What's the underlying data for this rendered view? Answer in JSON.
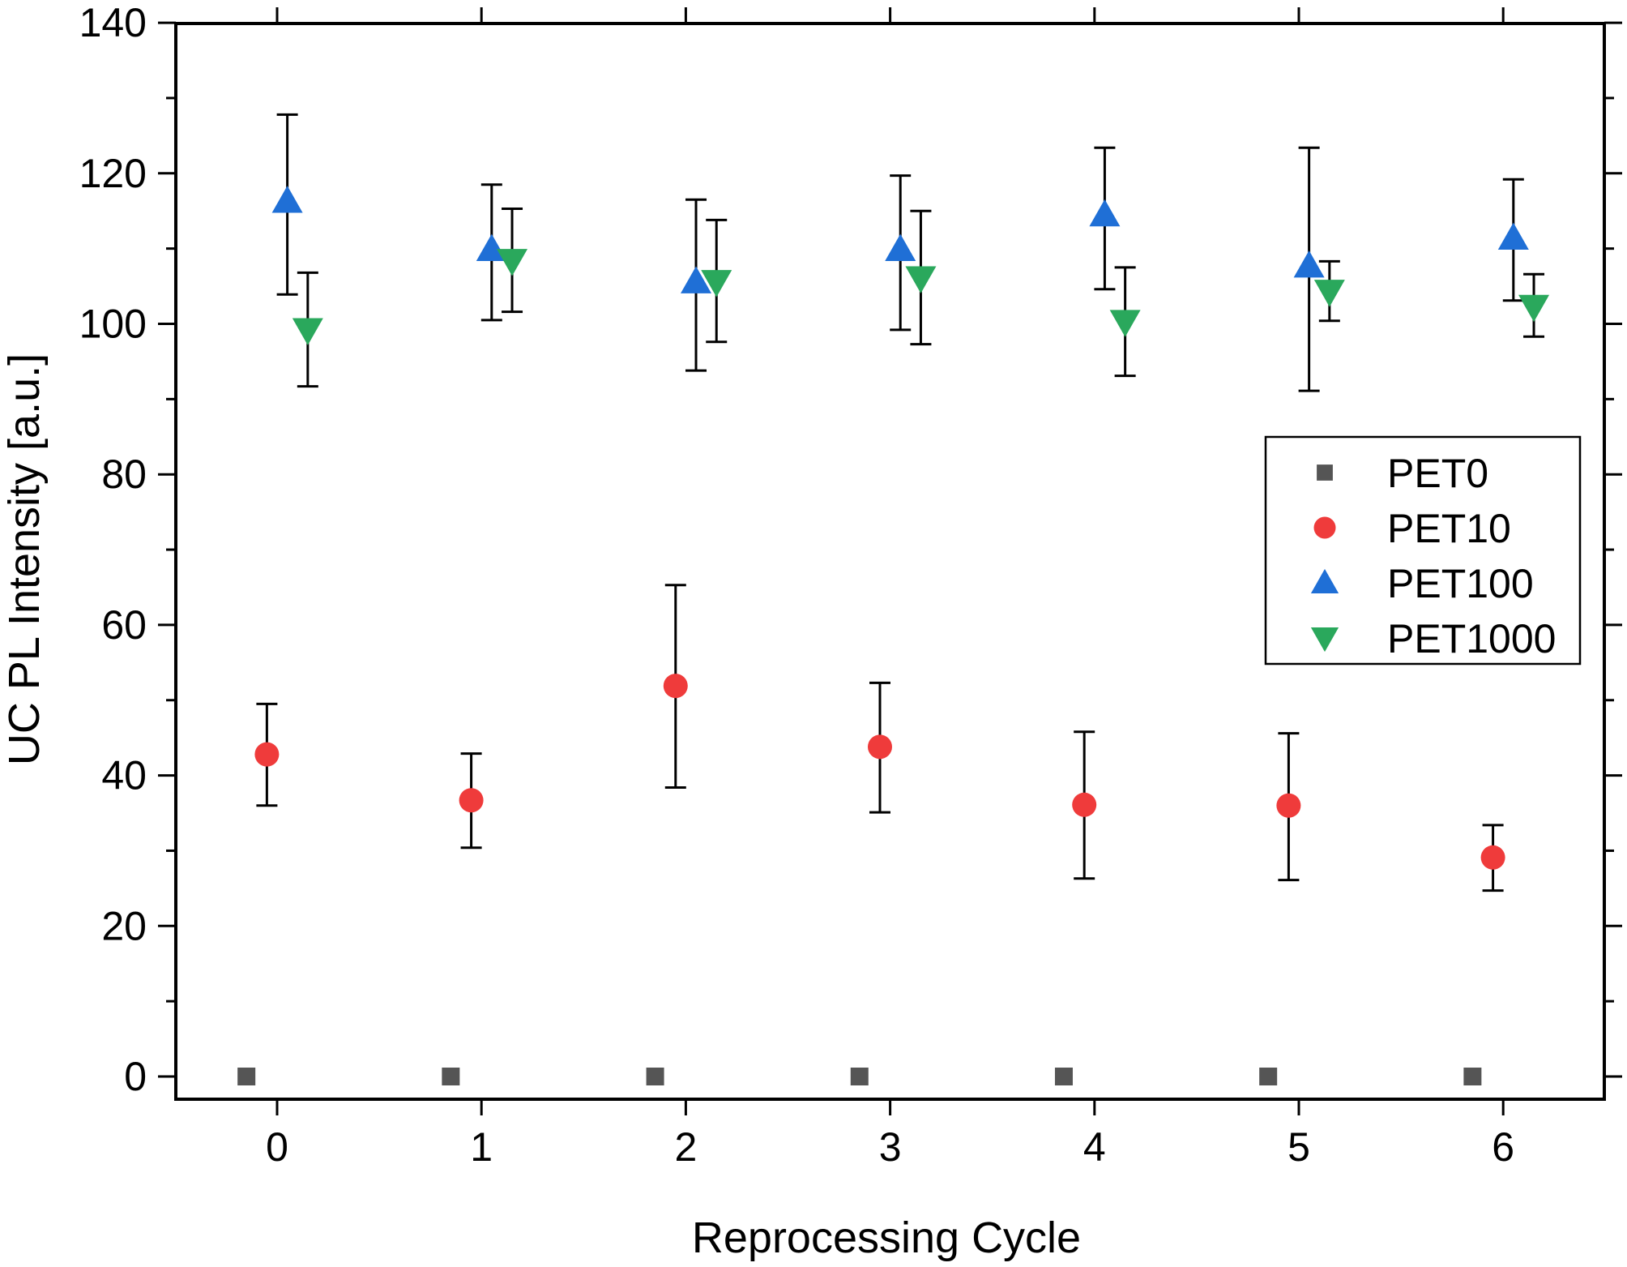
{
  "chart_data": {
    "type": "scatter",
    "title": "",
    "xlabel": "Reprocessing Cycle",
    "ylabel": "UC PL Intensity [a.u.]",
    "xlim": [
      -0.5,
      6.5
    ],
    "ylim": [
      0,
      140
    ],
    "x_ticks": [
      0,
      1,
      2,
      3,
      4,
      5,
      6
    ],
    "y_ticks": [
      0,
      20,
      40,
      60,
      80,
      100,
      120,
      140
    ],
    "grid": false,
    "error_bars": true,
    "legend_position": "right, middle",
    "series": [
      {
        "name": "PET0",
        "marker": "square",
        "color": "#555555",
        "x": [
          -0.15,
          0.85,
          1.85,
          2.85,
          3.85,
          4.85,
          5.85
        ],
        "y": [
          0,
          0,
          0,
          0,
          0,
          0,
          0
        ]
      },
      {
        "name": "PET10",
        "marker": "circle",
        "color": "#ef3b3b",
        "x": [
          -0.05,
          0.95,
          1.95,
          2.95,
          3.95,
          4.95,
          5.95
        ],
        "y": [
          42.8,
          36.7,
          51.9,
          43.8,
          36.1,
          36.0,
          29.1
        ],
        "y_err_low": [
          36.0,
          30.4,
          38.4,
          35.1,
          26.3,
          26.1,
          24.7
        ],
        "y_err_high": [
          49.5,
          42.9,
          65.3,
          52.3,
          45.8,
          45.6,
          33.4
        ]
      },
      {
        "name": "PET100",
        "marker": "triangle-up",
        "color": "#1f6fd6",
        "x": [
          0.05,
          1.05,
          2.05,
          3.05,
          4.05,
          5.05,
          6.05
        ],
        "y": [
          116.3,
          109.9,
          105.6,
          109.9,
          114.5,
          107.7,
          111.4
        ],
        "y_err_low": [
          103.9,
          100.5,
          93.8,
          99.2,
          104.6,
          91.1,
          103.1
        ],
        "y_err_high": [
          127.8,
          118.5,
          116.5,
          119.7,
          123.4,
          123.4,
          119.2
        ]
      },
      {
        "name": "PET1000",
        "marker": "triangle-down",
        "color": "#2aa85c",
        "x": [
          0.15,
          1.15,
          2.15,
          3.15,
          4.15,
          5.15,
          6.15
        ],
        "y": [
          99.2,
          108.4,
          105.6,
          106.1,
          100.3,
          104.3,
          102.3
        ],
        "y_err_low": [
          91.7,
          101.6,
          97.6,
          97.3,
          93.1,
          100.4,
          98.3
        ],
        "y_err_high": [
          106.8,
          115.3,
          113.8,
          115.0,
          107.5,
          108.3,
          106.6
        ]
      }
    ]
  }
}
